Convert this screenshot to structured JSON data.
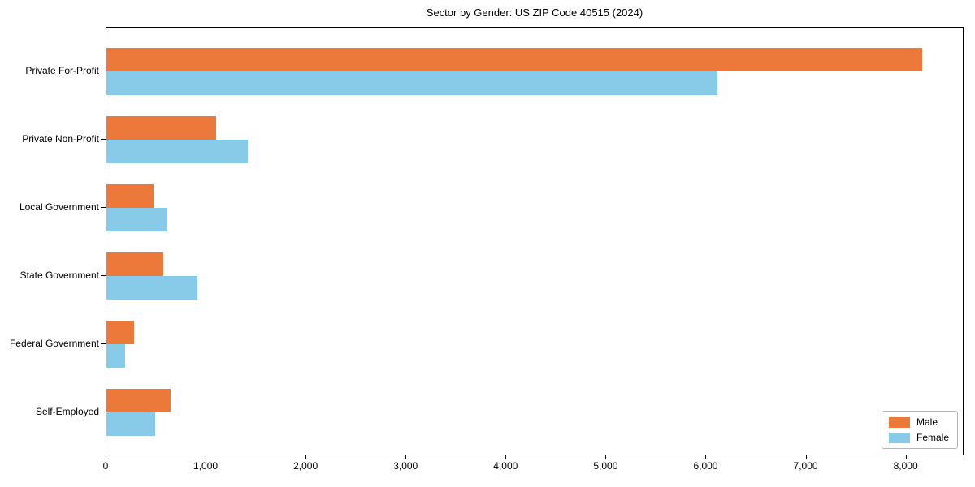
{
  "title": "Sector by Gender: US ZIP Code 40515 (2024)",
  "colors": {
    "male": "#EC7839",
    "female": "#87CBE8",
    "axis": "#000000",
    "legend_border": "#b7b7b7",
    "background": "#ffffff"
  },
  "legend": {
    "position": "lower right",
    "items": [
      {
        "label": "Male",
        "color": "#EC7839"
      },
      {
        "label": "Female",
        "color": "#87CBE8"
      }
    ]
  },
  "chart_data": {
    "type": "bar",
    "orientation": "horizontal",
    "title": "Sector by Gender: US ZIP Code 40515 (2024)",
    "categories": [
      "Private For-Profit",
      "Private Non-Profit",
      "Local Government",
      "State Government",
      "Federal Government",
      "Self-Employed"
    ],
    "series": [
      {
        "name": "Male",
        "color": "#EC7839",
        "values": [
          8170,
          1100,
          470,
          570,
          280,
          640
        ]
      },
      {
        "name": "Female",
        "color": "#87CBE8",
        "values": [
          6120,
          1420,
          610,
          910,
          190,
          490
        ]
      }
    ],
    "xlabel": "",
    "ylabel": "",
    "xlim": [
      0,
      8580
    ],
    "x_ticks": [
      0,
      1000,
      2000,
      3000,
      4000,
      5000,
      6000,
      7000,
      8000
    ],
    "x_tick_labels": [
      "0",
      "1,000",
      "2,000",
      "3,000",
      "4,000",
      "5,000",
      "6,000",
      "7,000",
      "8,000"
    ],
    "grid": false,
    "legend_position": "lower right"
  }
}
